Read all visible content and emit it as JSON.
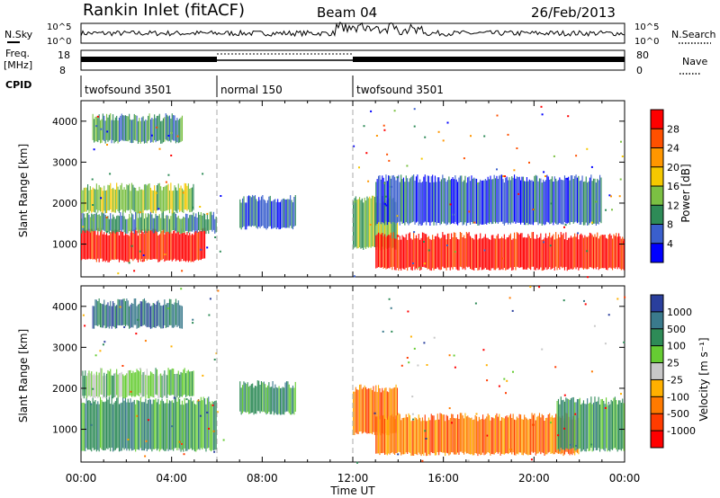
{
  "header": {
    "station": "Rankin Inlet (fitACF)",
    "beam": "Beam 04",
    "date": "26/Feb/2013"
  },
  "sky_panel": {
    "left_label": "N.Sky",
    "right_label": "N.Search",
    "left_ticks": [
      "10^5",
      "10^0"
    ],
    "right_ticks": [
      "10^5",
      "10^0"
    ]
  },
  "freq_panel": {
    "left_label_1": "Freq.",
    "left_label_2": "[MHz]",
    "right_label": "Nave",
    "left_ticks": [
      "18",
      "8"
    ],
    "right_ticks": [
      "80",
      "0"
    ]
  },
  "cpid": {
    "label": "CPID",
    "segments": [
      {
        "name": "twofsound 3501",
        "start": 0,
        "end": 6
      },
      {
        "name": "normal 150",
        "start": 6,
        "end": 12
      },
      {
        "name": "twofsound 3501",
        "start": 12,
        "end": 24
      }
    ]
  },
  "chart_data": [
    {
      "type": "heatmap",
      "name": "power",
      "ylabel": "Slant Range [km]",
      "xlabel": "",
      "ylim": [
        200,
        4500
      ],
      "yticks": [
        "1000",
        "2000",
        "3000",
        "4000"
      ],
      "colorbar_label": "Power [dB]",
      "colorbar_ticks": [
        "28",
        "24",
        "20",
        "16",
        "12",
        "8",
        "4"
      ],
      "colorbar_colors": [
        "#ff0000",
        "#ff5000",
        "#ff9600",
        "#f5c800",
        "#7bc043",
        "#2e8b57",
        "#3a5fcd",
        "#0000ff"
      ],
      "bands": [
        {
          "t0": 0,
          "t1": 5.5,
          "r0": 600,
          "r1": 1300,
          "level": 0
        },
        {
          "t0": 0,
          "t1": 6,
          "r0": 1300,
          "r1": 1700,
          "level": 5
        },
        {
          "t0": 0,
          "t1": 5,
          "r0": 1800,
          "r1": 2400,
          "level": 4
        },
        {
          "t0": 0.5,
          "t1": 4.5,
          "r0": 3500,
          "r1": 4100,
          "level": 5
        },
        {
          "t0": 7,
          "t1": 9.5,
          "r0": 1400,
          "r1": 2100,
          "level": 6
        },
        {
          "t0": 12,
          "t1": 14,
          "r0": 900,
          "r1": 2100,
          "level": 4
        },
        {
          "t0": 13,
          "t1": 24,
          "r0": 400,
          "r1": 1200,
          "level": 0
        },
        {
          "t0": 13,
          "t1": 23,
          "r0": 1500,
          "r1": 2600,
          "level": 6
        }
      ]
    },
    {
      "type": "heatmap",
      "name": "velocity",
      "ylabel": "Slant Range [km]",
      "xlabel": "Time UT",
      "ylim": [
        200,
        4500
      ],
      "yticks": [
        "1000",
        "2000",
        "3000",
        "4000"
      ],
      "xticks": [
        "00:00",
        "04:00",
        "08:00",
        "12:00",
        "16:00",
        "20:00",
        "00:00"
      ],
      "xlim": [
        0,
        24
      ],
      "colorbar_label": "Velocity [m s⁻¹]",
      "colorbar_ticks": [
        "1000",
        "500",
        "100",
        "25",
        "-25",
        "-100",
        "-500",
        "-1000"
      ],
      "colorbar_colors": [
        "#2a3f9d",
        "#3a7a8c",
        "#2e8b57",
        "#66cc33",
        "#c8c8c8",
        "#ffb000",
        "#ff7a00",
        "#ff3c00",
        "#ff0000"
      ],
      "bands": [
        {
          "t0": 0,
          "t1": 6,
          "r0": 500,
          "r1": 1700,
          "level": 2
        },
        {
          "t0": 0,
          "t1": 5,
          "r0": 1800,
          "r1": 2400,
          "level": 3
        },
        {
          "t0": 0.5,
          "t1": 4.5,
          "r0": 3500,
          "r1": 4100,
          "level": 1
        },
        {
          "t0": 7,
          "t1": 9.5,
          "r0": 1400,
          "r1": 2100,
          "level": 2
        },
        {
          "t0": 12,
          "t1": 14,
          "r0": 900,
          "r1": 2000,
          "level": 6
        },
        {
          "t0": 13,
          "t1": 22,
          "r0": 400,
          "r1": 1300,
          "level": 6
        },
        {
          "t0": 21,
          "t1": 24,
          "r0": 500,
          "r1": 1700,
          "level": 2
        }
      ]
    }
  ]
}
